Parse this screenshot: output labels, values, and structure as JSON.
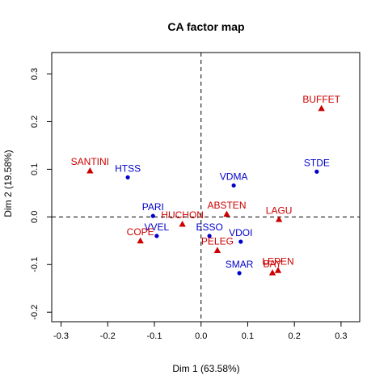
{
  "chart_data": {
    "type": "scatter",
    "title": "CA factor map",
    "xlabel": "Dim 1 (63.58%)",
    "ylabel": "Dim 2 (19.58%)",
    "xlim": [
      -0.32,
      0.34
    ],
    "ylim": [
      -0.22,
      0.345
    ],
    "xticks": [
      "-0.3",
      "-0.2",
      "-0.1",
      "0.0",
      "0.1",
      "0.2",
      "0.3"
    ],
    "yticks": [
      "-0.2",
      "-0.1",
      "0.0",
      "0.1",
      "0.2",
      "0.3"
    ],
    "grid": false,
    "reference_lines": {
      "x": 0,
      "y": 0,
      "style": "dashed"
    },
    "series": [
      {
        "color": "#0000cc",
        "marker": "circle",
        "points": [
          {
            "label": "HTSS",
            "x": -0.157,
            "y": 0.083
          },
          {
            "label": "PARI",
            "x": -0.103,
            "y": 0.002
          },
          {
            "label": "VVEL",
            "x": -0.095,
            "y": -0.04
          },
          {
            "label": "ESSO",
            "x": 0.018,
            "y": -0.04
          },
          {
            "label": "VDMA",
            "x": 0.07,
            "y": 0.066
          },
          {
            "label": "VDOI",
            "x": 0.085,
            "y": -0.052
          },
          {
            "label": "SMAR",
            "x": 0.082,
            "y": -0.118
          },
          {
            "label": "STDE",
            "x": 0.248,
            "y": 0.095
          }
        ]
      },
      {
        "color": "#cc0000",
        "marker": "triangle",
        "points": [
          {
            "label": "SANTINI",
            "x": -0.238,
            "y": 0.097
          },
          {
            "label": "COPE",
            "x": -0.13,
            "y": -0.05
          },
          {
            "label": "HUCHON",
            "x": -0.04,
            "y": -0.015
          },
          {
            "label": "ABSTEN",
            "x": 0.055,
            "y": 0.006
          },
          {
            "label": "PELEG",
            "x": 0.035,
            "y": -0.07
          },
          {
            "label": "LAGU",
            "x": 0.167,
            "y": -0.005
          },
          {
            "label": "LEPEN",
            "x": 0.165,
            "y": -0.112
          },
          {
            "label": "BAY",
            "x": 0.153,
            "y": -0.117
          },
          {
            "label": "BUFFET",
            "x": 0.258,
            "y": 0.228
          }
        ]
      }
    ]
  }
}
